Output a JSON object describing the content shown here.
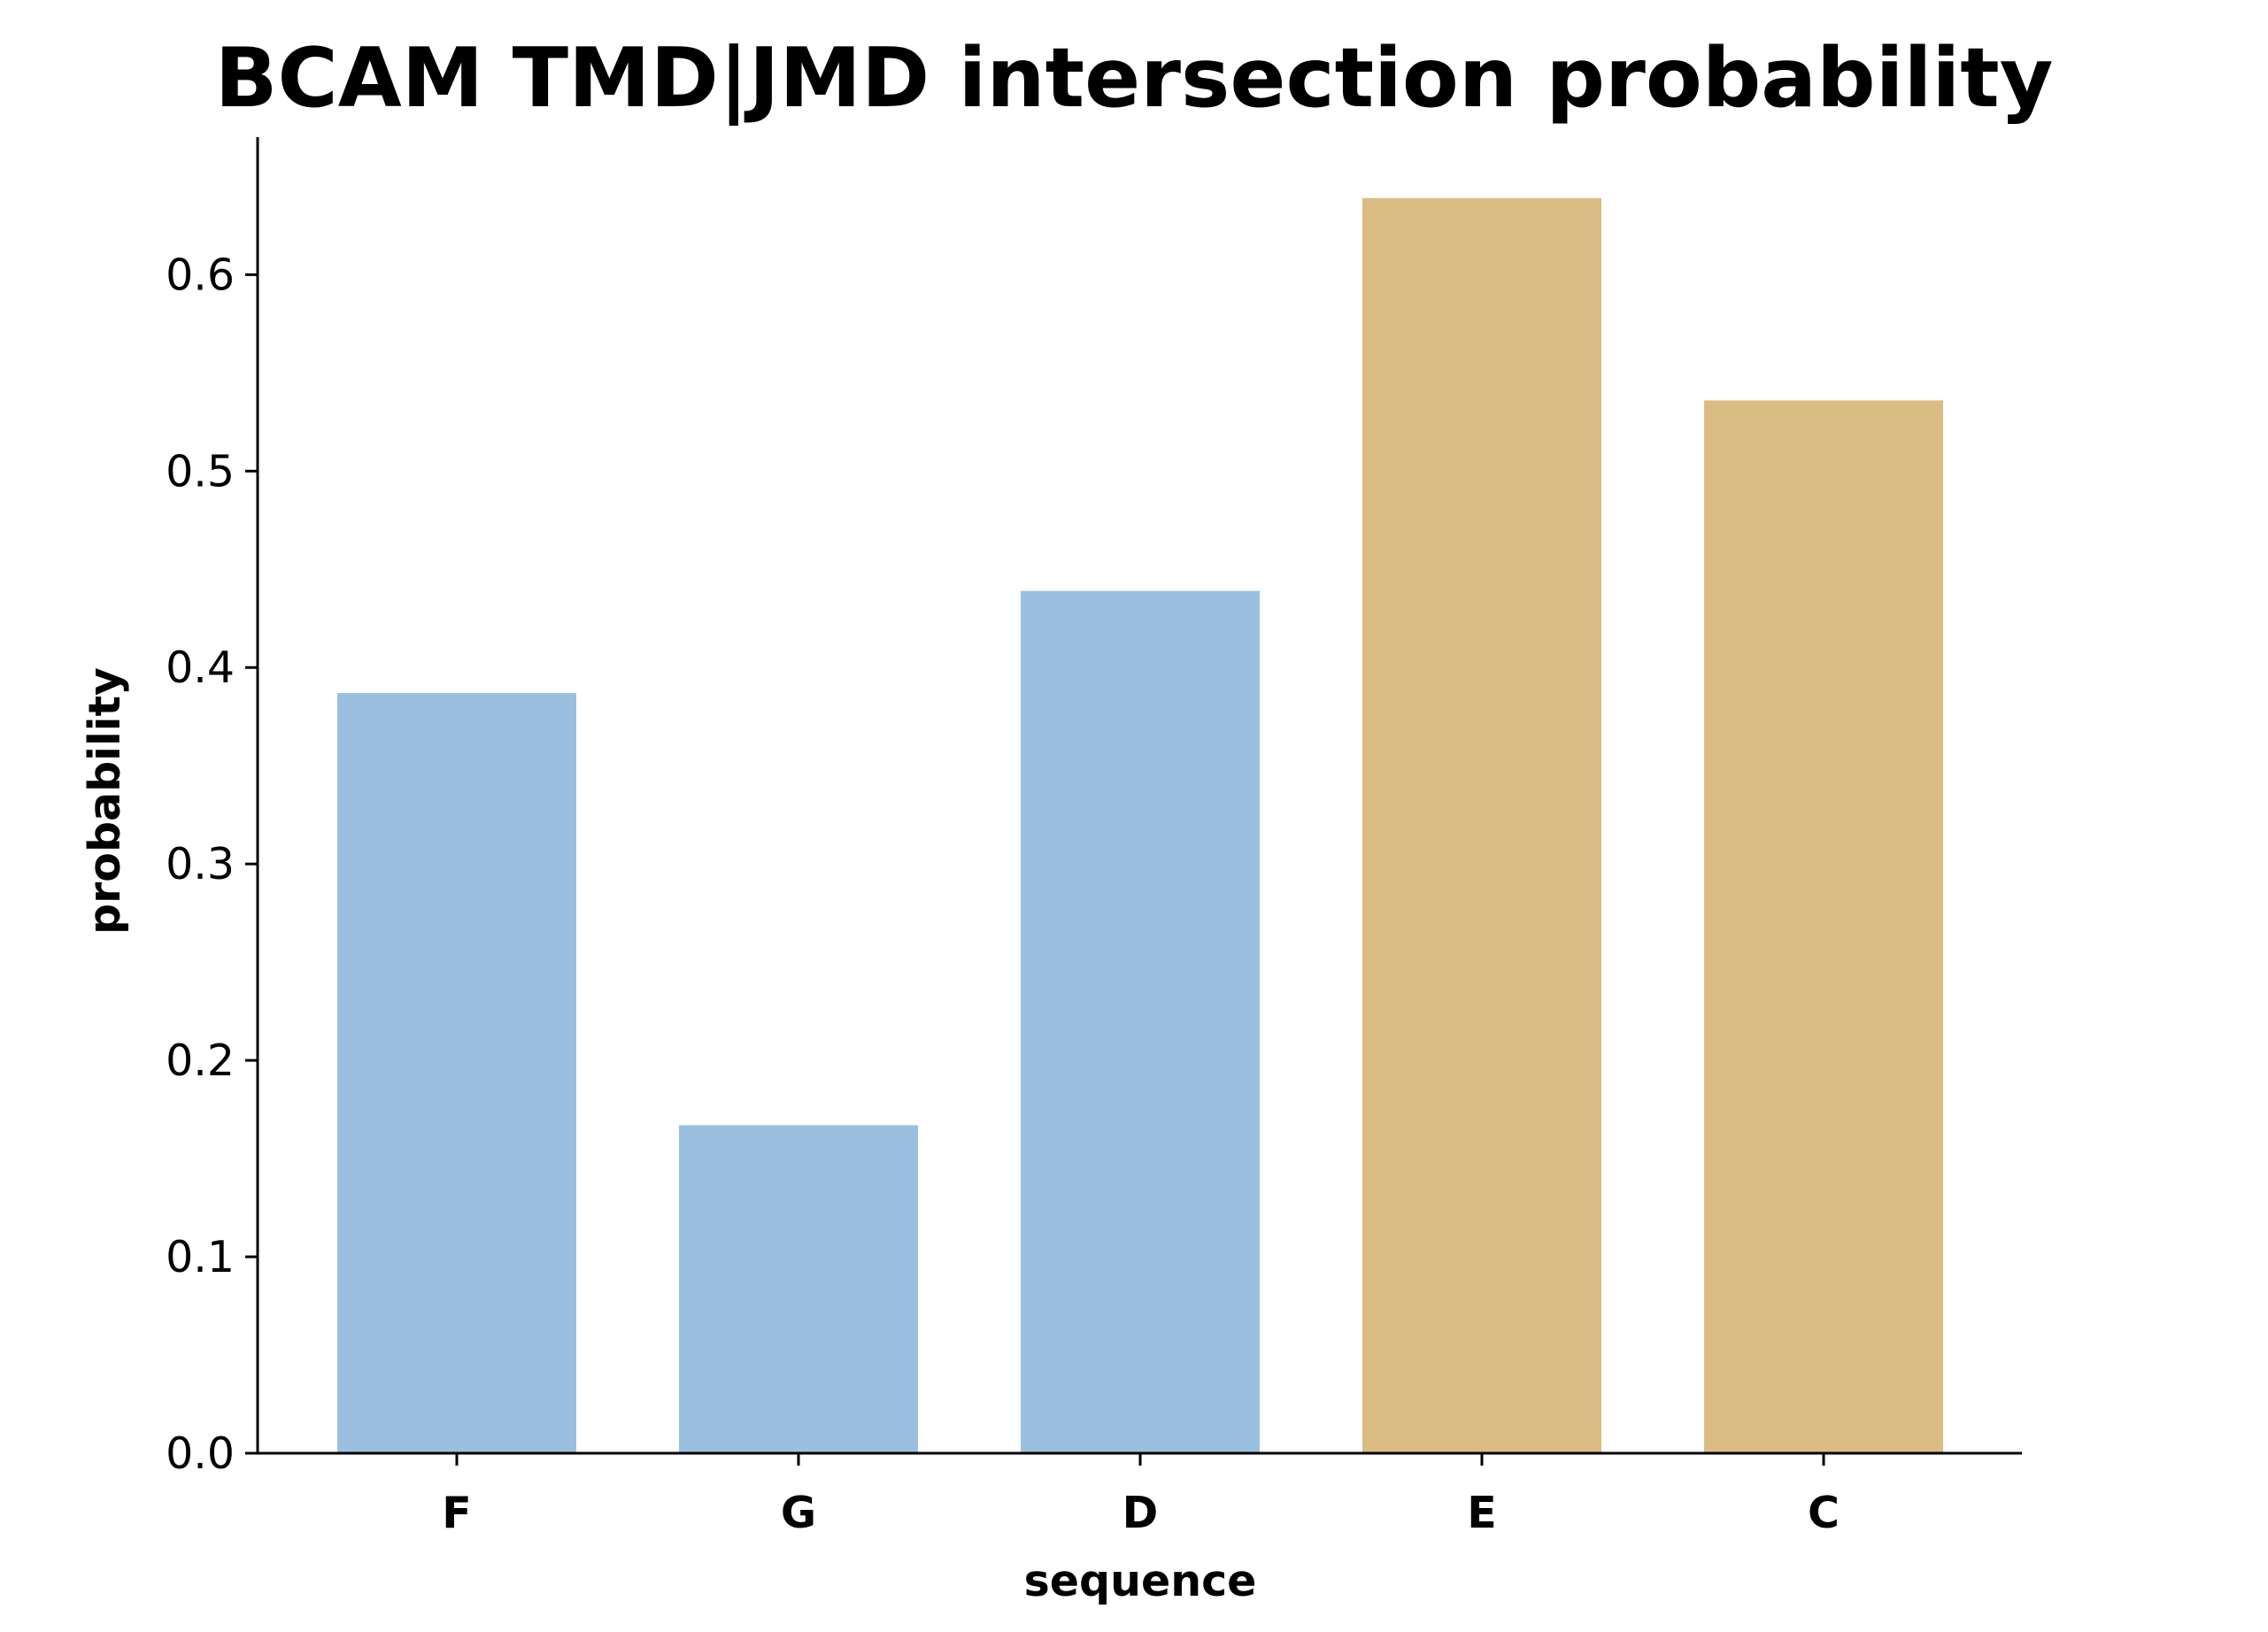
{
  "chart_data": {
    "type": "bar",
    "title": "BCAM TMD|JMD intersection probability",
    "xlabel": "sequence",
    "ylabel": "probability",
    "categories": [
      "F",
      "G",
      "D",
      "E",
      "C"
    ],
    "values": [
      0.387,
      0.167,
      0.439,
      0.639,
      0.536
    ],
    "bar_colors": [
      "#9bc0df",
      "#9bc0df",
      "#9bc0df",
      "#dbbd83",
      "#dbbd83"
    ],
    "ylim": [
      0,
      0.67
    ],
    "yticks": [
      0.0,
      0.1,
      0.2,
      0.3,
      0.4,
      0.5,
      0.6
    ],
    "ytick_labels": [
      "0.0",
      "0.1",
      "0.2",
      "0.3",
      "0.4",
      "0.5",
      "0.6"
    ],
    "grid": false,
    "legend": "none"
  }
}
